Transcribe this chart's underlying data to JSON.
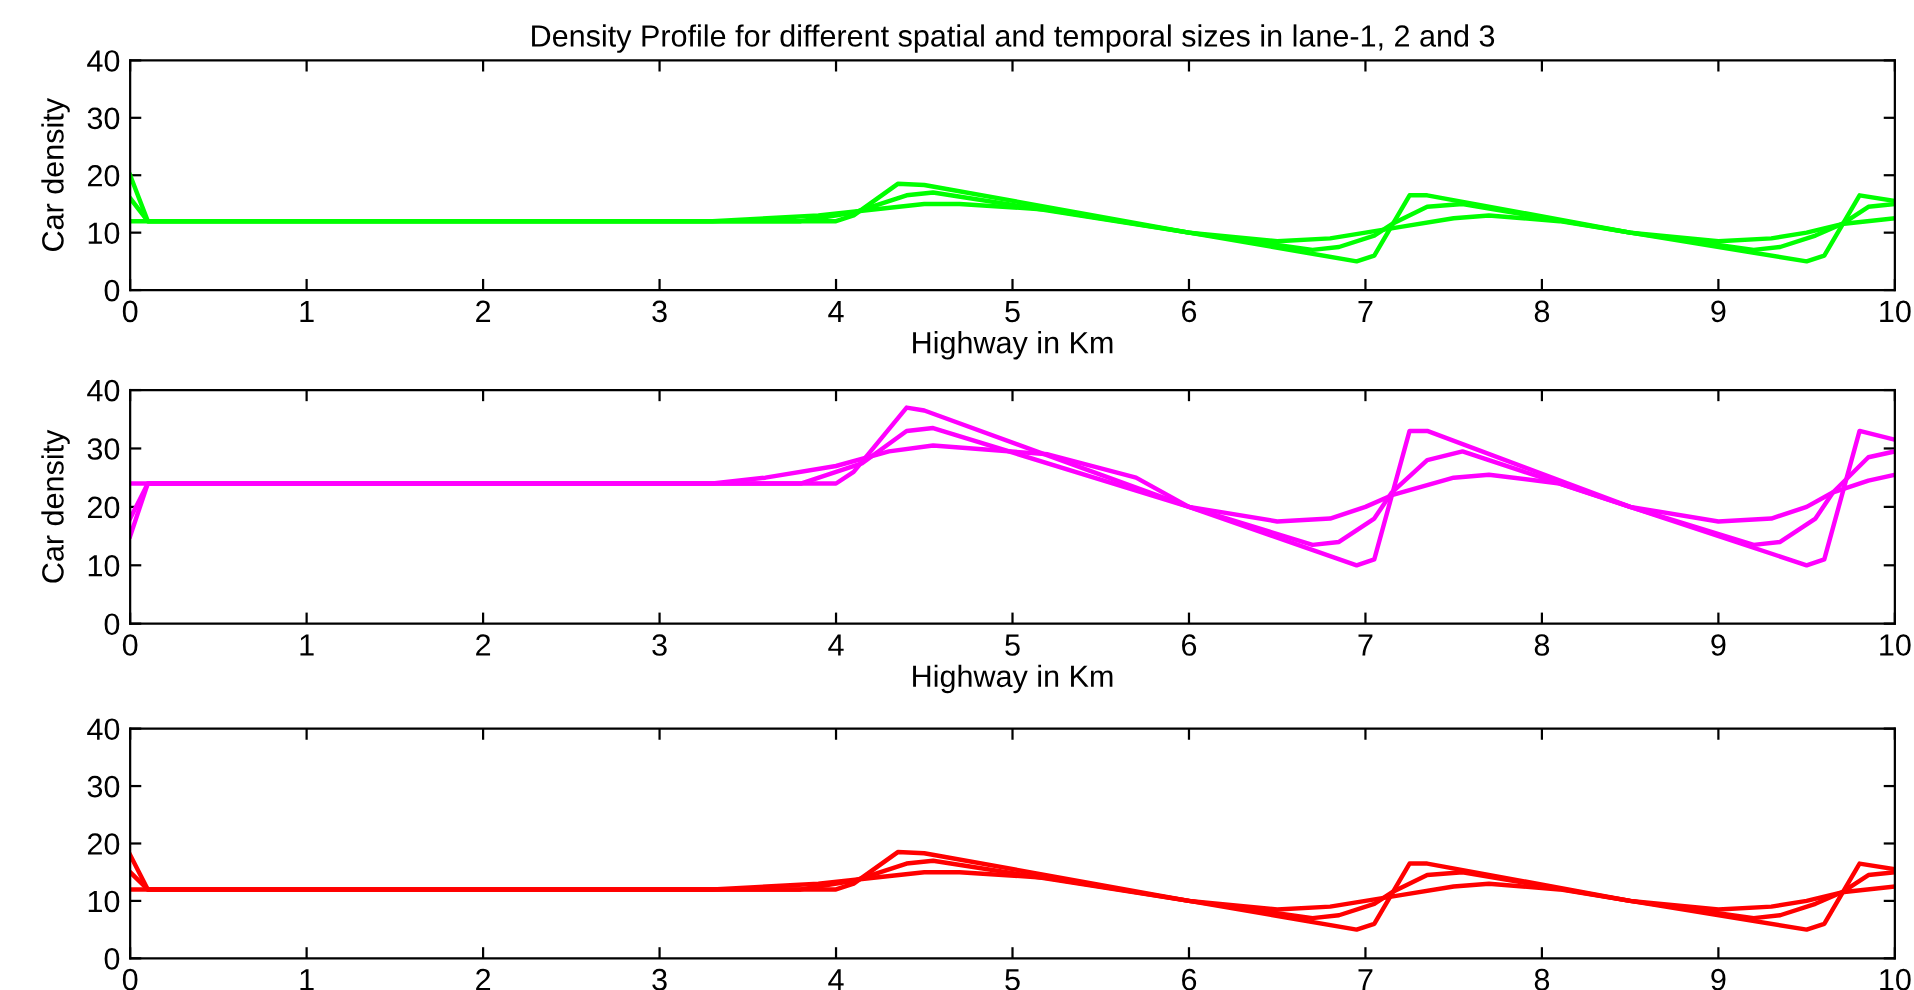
{
  "chart_data": [
    {
      "type": "line",
      "title": "Density Profile for different spatial and temporal sizes in lane-1, 2 and 3",
      "xlabel": "Highway in Km",
      "ylabel": "Car density",
      "xlim": [
        0,
        10
      ],
      "ylim": [
        0,
        40
      ],
      "xticks": [
        0,
        1,
        2,
        3,
        4,
        5,
        6,
        7,
        8,
        9,
        10
      ],
      "yticks": [
        0,
        10,
        20,
        30,
        40
      ],
      "series": [
        {
          "color": "#00ff00",
          "x": [
            0,
            0.1,
            4.0,
            4.1,
            4.35,
            4.5,
            6.0,
            6.95,
            7.05,
            7.25,
            7.35,
            8.5,
            9.5,
            9.6,
            9.8,
            10
          ],
          "values": [
            20,
            12,
            12,
            13,
            18.5,
            18.3,
            10,
            5,
            6,
            16.5,
            16.5,
            10,
            5,
            6,
            16.5,
            15.5
          ]
        },
        {
          "color": "#00ff00",
          "x": [
            0,
            0.1,
            3.8,
            4.1,
            4.4,
            4.55,
            6.0,
            6.7,
            6.85,
            7.05,
            7.15,
            7.35,
            7.55,
            8.5,
            9.2,
            9.35,
            9.55,
            9.7,
            9.85,
            10
          ],
          "values": [
            16,
            12,
            12,
            13.5,
            16.5,
            17,
            10,
            7,
            7.5,
            9.5,
            11.5,
            14.5,
            15,
            10,
            7,
            7.5,
            9.5,
            11.5,
            14.5,
            15
          ]
        },
        {
          "color": "#00ff00",
          "x": [
            0,
            0.1,
            3.3,
            3.9,
            4.2,
            4.5,
            4.7,
            5.2,
            5.6,
            6.0,
            6.5,
            6.8,
            7.0,
            7.2,
            7.5,
            7.7,
            8.1,
            8.5,
            9.0,
            9.3,
            9.5,
            9.7,
            10
          ],
          "values": [
            12,
            12,
            12,
            13,
            14,
            15,
            15,
            14,
            12,
            10,
            8.5,
            9,
            10,
            11,
            12.5,
            13,
            12,
            10,
            8.5,
            9,
            10,
            11.5,
            12.5
          ]
        }
      ]
    },
    {
      "type": "line",
      "xlabel": "Highway in Km",
      "ylabel": "Car density",
      "xlim": [
        0,
        10
      ],
      "ylim": [
        0,
        40
      ],
      "xticks": [
        0,
        1,
        2,
        3,
        4,
        5,
        6,
        7,
        8,
        9,
        10
      ],
      "yticks": [
        0,
        10,
        20,
        30,
        40
      ],
      "series": [
        {
          "color": "#ff00ff",
          "x": [
            0,
            0.1,
            4.0,
            4.1,
            4.4,
            4.5,
            6.0,
            6.95,
            7.05,
            7.25,
            7.35,
            8.5,
            9.5,
            9.6,
            9.8,
            10
          ],
          "values": [
            15,
            24,
            24,
            26,
            37,
            36.5,
            20,
            10,
            11,
            33,
            33,
            20,
            10,
            11,
            33,
            31.5
          ]
        },
        {
          "color": "#ff00ff",
          "x": [
            0,
            0.1,
            3.8,
            4.15,
            4.4,
            4.55,
            6.0,
            6.7,
            6.85,
            7.05,
            7.15,
            7.35,
            7.55,
            8.5,
            9.2,
            9.35,
            9.55,
            9.65,
            9.85,
            10
          ],
          "values": [
            18,
            24,
            24,
            27.5,
            33,
            33.5,
            20,
            13.5,
            14,
            18,
            22.5,
            28,
            29.5,
            20,
            13.5,
            14,
            18,
            22.5,
            28.5,
            29.5
          ]
        },
        {
          "color": "#ff00ff",
          "x": [
            0,
            0.1,
            3.3,
            3.6,
            4.0,
            4.3,
            4.55,
            5.2,
            5.7,
            6.0,
            6.5,
            6.8,
            7.0,
            7.15,
            7.5,
            7.7,
            8.1,
            8.5,
            9.0,
            9.3,
            9.5,
            9.65,
            9.85,
            10
          ],
          "values": [
            24,
            24,
            24,
            25,
            27,
            29.5,
            30.5,
            29,
            25,
            20,
            17.5,
            18,
            20,
            22,
            25,
            25.5,
            24,
            20,
            17.5,
            18,
            20,
            22.5,
            24.5,
            25.5
          ]
        }
      ]
    },
    {
      "type": "line",
      "xlim": [
        0,
        10
      ],
      "ylim": [
        0,
        40
      ],
      "xticks": [
        0,
        1,
        2,
        3,
        4,
        5,
        6,
        7,
        8,
        9,
        10
      ],
      "yticks": [
        0,
        10,
        20,
        30,
        40
      ],
      "series": [
        {
          "color": "#ff0000",
          "x": [
            0,
            0.1,
            4.0,
            4.1,
            4.35,
            4.5,
            6.0,
            6.95,
            7.05,
            7.25,
            7.35,
            8.5,
            9.5,
            9.6,
            9.8,
            10
          ],
          "values": [
            18,
            12,
            12,
            13,
            18.5,
            18.3,
            10,
            5,
            6,
            16.5,
            16.5,
            10,
            5,
            6,
            16.5,
            15.5
          ]
        },
        {
          "color": "#ff0000",
          "x": [
            0,
            0.1,
            3.8,
            4.1,
            4.4,
            4.55,
            6.0,
            6.7,
            6.85,
            7.05,
            7.15,
            7.35,
            7.55,
            8.5,
            9.2,
            9.35,
            9.55,
            9.7,
            9.85,
            10
          ],
          "values": [
            15,
            12,
            12,
            13.5,
            16.5,
            17,
            10,
            7,
            7.5,
            9.5,
            11.5,
            14.5,
            15,
            10,
            7,
            7.5,
            9.5,
            11.5,
            14.5,
            15
          ]
        },
        {
          "color": "#ff0000",
          "x": [
            0,
            0.1,
            3.3,
            3.9,
            4.2,
            4.5,
            4.7,
            5.2,
            5.6,
            6.0,
            6.5,
            6.8,
            7.0,
            7.2,
            7.5,
            7.7,
            8.1,
            8.5,
            9.0,
            9.3,
            9.5,
            9.7,
            10
          ],
          "values": [
            12,
            12,
            12,
            13,
            14,
            15,
            15,
            14,
            12,
            10,
            8.5,
            9,
            10,
            11,
            12.5,
            13,
            12,
            10,
            8.5,
            9,
            10,
            11.5,
            12.5
          ]
        }
      ]
    }
  ]
}
